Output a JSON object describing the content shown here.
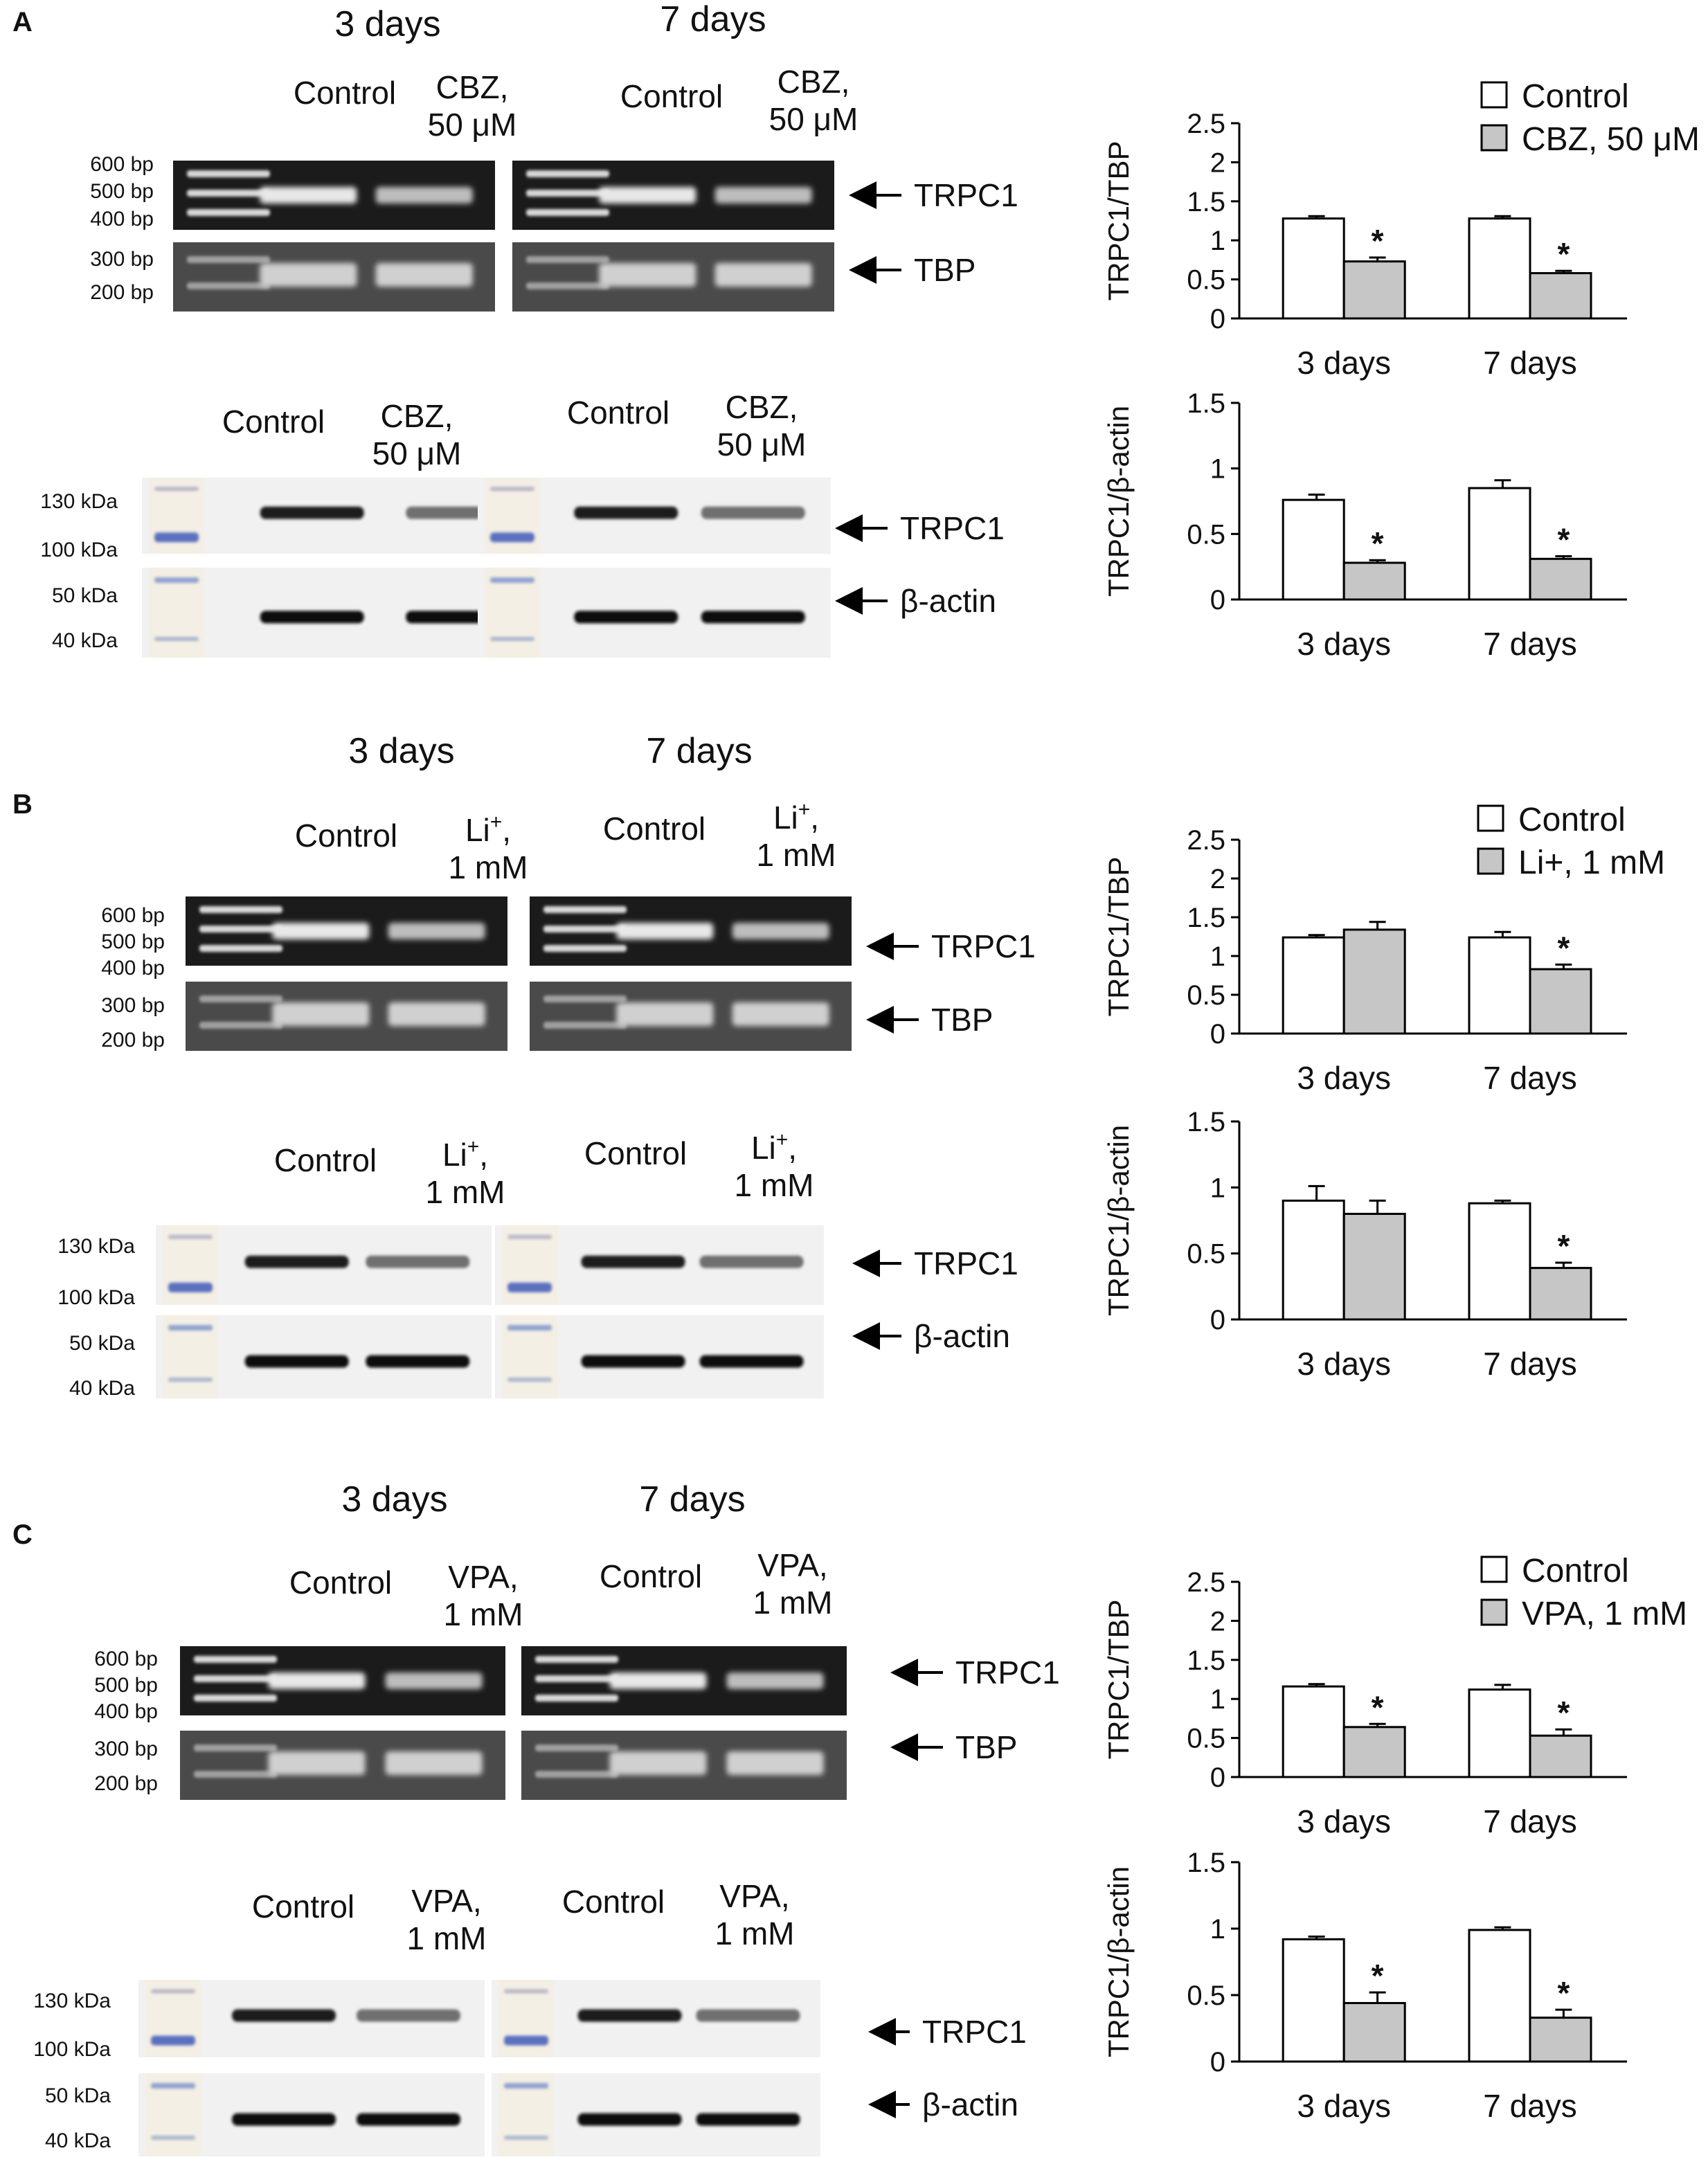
{
  "panels": [
    {
      "letter": "A",
      "days": [
        "3 days",
        "7 days"
      ],
      "treatment_line1": "CBZ,",
      "treatment_line2": "50 μM",
      "treatment_sup": "",
      "control_label": "Control",
      "pcr_markers": [
        "600 bp",
        "500 bp",
        "400 bp",
        "300 bp",
        "200 bp"
      ],
      "wb_markers": [
        "130 kDa",
        "100 kDa",
        "50 kDa",
        "40 kDa"
      ],
      "pcr_targets": [
        "TRPC1",
        "TBP"
      ],
      "wb_targets": [
        "TRPC1",
        "β-actin"
      ]
    },
    {
      "letter": "B",
      "days": [
        "3 days",
        "7 days"
      ],
      "treatment_line1": "Li",
      "treatment_line2": "1 mM",
      "treatment_sup": "+",
      "control_label": "Control",
      "pcr_markers": [
        "600 bp",
        "500 bp",
        "400 bp",
        "300 bp",
        "200 bp"
      ],
      "wb_markers": [
        "130 kDa",
        "100 kDa",
        "50 kDa",
        "40 kDa"
      ],
      "pcr_targets": [
        "TRPC1",
        "TBP"
      ],
      "wb_targets": [
        "TRPC1",
        "β-actin"
      ]
    },
    {
      "letter": "C",
      "days": [
        "3 days",
        "7 days"
      ],
      "treatment_line1": "VPA,",
      "treatment_line2": "1 mM",
      "treatment_sup": "",
      "control_label": "Control",
      "pcr_markers": [
        "600 bp",
        "500 bp",
        "400 bp",
        "300 bp",
        "200 bp"
      ],
      "wb_markers": [
        "130 kDa",
        "100 kDa",
        "50 kDa",
        "40 kDa"
      ],
      "pcr_targets": [
        "TRPC1",
        "TBP"
      ],
      "wb_targets": [
        "TRPC1",
        "β-actin"
      ]
    }
  ],
  "chart_data": [
    {
      "type": "bar",
      "panel": "A",
      "ylabel": "TRPC1/TBP",
      "categories": [
        "3 days",
        "7 days"
      ],
      "series": [
        {
          "name": "Control",
          "values": [
            1.28,
            1.28
          ],
          "errors": [
            0.03,
            0.03
          ],
          "color": "#ffffff"
        },
        {
          "name": "CBZ, 50 μM",
          "values": [
            0.73,
            0.58
          ],
          "errors": [
            0.05,
            0.03
          ],
          "color": "#c6c6c6"
        }
      ],
      "significance": [
        [
          false,
          true
        ],
        [
          false,
          true
        ]
      ],
      "ylim": [
        0,
        2.5
      ],
      "yticks": [
        "2.5",
        "2",
        "1.5",
        "1",
        "0.5",
        "0"
      ],
      "legend": true,
      "legend_position": "top-right",
      "grid": false
    },
    {
      "type": "bar",
      "panel": "A",
      "ylabel": "TRPC1/β-actin",
      "categories": [
        "3 days",
        "7 days"
      ],
      "series": [
        {
          "name": "Control",
          "values": [
            0.76,
            0.85
          ],
          "errors": [
            0.04,
            0.06
          ],
          "color": "#ffffff"
        },
        {
          "name": "CBZ, 50 μM",
          "values": [
            0.28,
            0.31
          ],
          "errors": [
            0.02,
            0.02
          ],
          "color": "#c6c6c6"
        }
      ],
      "significance": [
        [
          false,
          true
        ],
        [
          false,
          true
        ]
      ],
      "ylim": [
        0,
        1.5
      ],
      "yticks": [
        "1.5",
        "1",
        "0.5",
        "0"
      ],
      "legend": false,
      "grid": false
    },
    {
      "type": "bar",
      "panel": "B",
      "ylabel": "TRPC1/TBP",
      "categories": [
        "3 days",
        "7 days"
      ],
      "series": [
        {
          "name": "Control",
          "values": [
            1.24,
            1.24
          ],
          "errors": [
            0.03,
            0.07
          ],
          "color": "#ffffff"
        },
        {
          "name": "Li+, 1 mM",
          "values": [
            1.34,
            0.83
          ],
          "errors": [
            0.1,
            0.06
          ],
          "color": "#c6c6c6"
        }
      ],
      "significance": [
        [
          false,
          false
        ],
        [
          false,
          true
        ]
      ],
      "ylim": [
        0,
        2.5
      ],
      "yticks": [
        "2.5",
        "2",
        "1.5",
        "1",
        "0.5",
        "0"
      ],
      "legend": true,
      "legend_position": "top-right",
      "grid": false
    },
    {
      "type": "bar",
      "panel": "B",
      "ylabel": "TRPC1/β-actin",
      "categories": [
        "3 days",
        "7 days"
      ],
      "series": [
        {
          "name": "Control",
          "values": [
            0.9,
            0.88
          ],
          "errors": [
            0.11,
            0.02
          ],
          "color": "#ffffff"
        },
        {
          "name": "Li+, 1 mM",
          "values": [
            0.8,
            0.39
          ],
          "errors": [
            0.1,
            0.04
          ],
          "color": "#c6c6c6"
        }
      ],
      "significance": [
        [
          false,
          false
        ],
        [
          false,
          true
        ]
      ],
      "ylim": [
        0,
        1.5
      ],
      "yticks": [
        "1.5",
        "1",
        "0.5",
        "0"
      ],
      "legend": false,
      "grid": false
    },
    {
      "type": "bar",
      "panel": "C",
      "ylabel": "TRPC1/TBP",
      "categories": [
        "3 days",
        "7 days"
      ],
      "series": [
        {
          "name": "Control",
          "values": [
            1.16,
            1.12
          ],
          "errors": [
            0.03,
            0.06
          ],
          "color": "#ffffff"
        },
        {
          "name": "VPA, 1 mM",
          "values": [
            0.64,
            0.53
          ],
          "errors": [
            0.04,
            0.08
          ],
          "color": "#c6c6c6"
        }
      ],
      "significance": [
        [
          false,
          true
        ],
        [
          false,
          true
        ]
      ],
      "ylim": [
        0,
        2.5
      ],
      "yticks": [
        "2.5",
        "2",
        "1.5",
        "1",
        "0.5",
        "0"
      ],
      "legend": true,
      "legend_position": "top-right",
      "grid": false
    },
    {
      "type": "bar",
      "panel": "C",
      "ylabel": "TRPC1/β-actin",
      "categories": [
        "3 days",
        "7 days"
      ],
      "series": [
        {
          "name": "Control",
          "values": [
            0.92,
            0.99
          ],
          "errors": [
            0.02,
            0.02
          ],
          "color": "#ffffff"
        },
        {
          "name": "VPA, 1 mM",
          "values": [
            0.44,
            0.33
          ],
          "errors": [
            0.08,
            0.06
          ],
          "color": "#c6c6c6"
        }
      ],
      "significance": [
        [
          false,
          true
        ],
        [
          false,
          true
        ]
      ],
      "ylim": [
        0,
        1.5
      ],
      "yticks": [
        "1.5",
        "1",
        "0.5",
        "0"
      ],
      "legend": false,
      "grid": false
    }
  ],
  "star_symbol": "*"
}
